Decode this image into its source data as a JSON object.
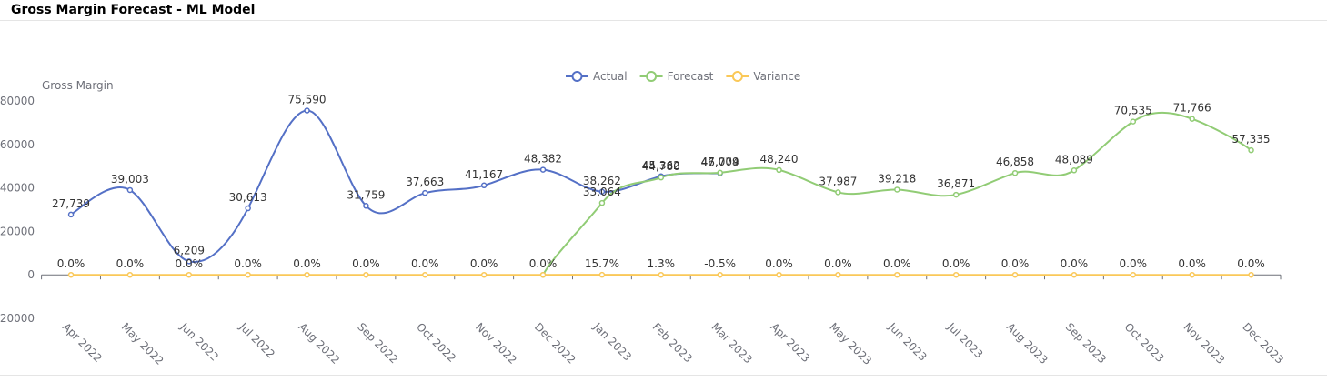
{
  "chart_data": {
    "type": "line",
    "title": "Gross Margin Forecast - ML Model",
    "y_label": "Gross Margin",
    "categories": [
      "Apr 2022",
      "May 2022",
      "Jun 2022",
      "Jul 2022",
      "Aug 2022",
      "Sep 2022",
      "Oct 2022",
      "Nov 2022",
      "Dec 2022",
      "Jan 2023",
      "Feb 2023",
      "Mar 2023",
      "Apr 2023",
      "May 2023",
      "Jun 2023",
      "Jul 2023",
      "Aug 2023",
      "Sep 2023",
      "Oct 2023",
      "Nov 2023",
      "Dec 2023"
    ],
    "series": [
      {
        "name": "Actual",
        "color": "#5470c6",
        "values": [
          27739,
          39003,
          6209,
          30613,
          75590,
          31759,
          37663,
          41167,
          48382,
          38262,
          45362,
          46774,
          null,
          null,
          null,
          null,
          null,
          null,
          null,
          null,
          null
        ],
        "value_labels": [
          "27,739",
          "39,003",
          "6,209",
          "30,613",
          "75,590",
          "31,759",
          "37,663",
          "41,167",
          "48,382",
          "38,262",
          "45,362",
          "46,774",
          null,
          null,
          null,
          null,
          null,
          null,
          null,
          null,
          null
        ]
      },
      {
        "name": "Forecast",
        "color": "#91cc75",
        "values": [
          null,
          null,
          null,
          null,
          null,
          null,
          null,
          null,
          0,
          33064,
          44780,
          47009,
          48240,
          37987,
          39218,
          36871,
          46858,
          48089,
          70535,
          71766,
          57335
        ],
        "value_labels": [
          null,
          null,
          null,
          null,
          null,
          null,
          null,
          null,
          null,
          "33,064",
          "44,780",
          "47,009",
          "48,240",
          "37,987",
          "39,218",
          "36,871",
          "46,858",
          "48,089",
          "70,535",
          "71,766",
          "57,335"
        ]
      },
      {
        "name": "Variance",
        "color": "#fac858",
        "values": [
          0,
          0,
          0,
          0,
          0,
          0,
          0,
          0,
          0,
          15.7,
          1.3,
          -0.5,
          0,
          0,
          0,
          0,
          0,
          0,
          0,
          0,
          0
        ],
        "value_labels": [
          "0.0%",
          "0.0%",
          "0.0%",
          "0.0%",
          "0.0%",
          "0.0%",
          "0.0%",
          "0.0%",
          "0.0%",
          "15.7%",
          "1.3%",
          "-0.5%",
          "0.0%",
          "0.0%",
          "0.0%",
          "0.0%",
          "0.0%",
          "0.0%",
          "0.0%",
          "0.0%",
          "0.0%"
        ]
      }
    ],
    "ylim": [
      -20000,
      80000
    ],
    "yticks": [
      -20000,
      0,
      20000,
      40000,
      60000,
      80000
    ],
    "grid": false,
    "legend": "top"
  }
}
